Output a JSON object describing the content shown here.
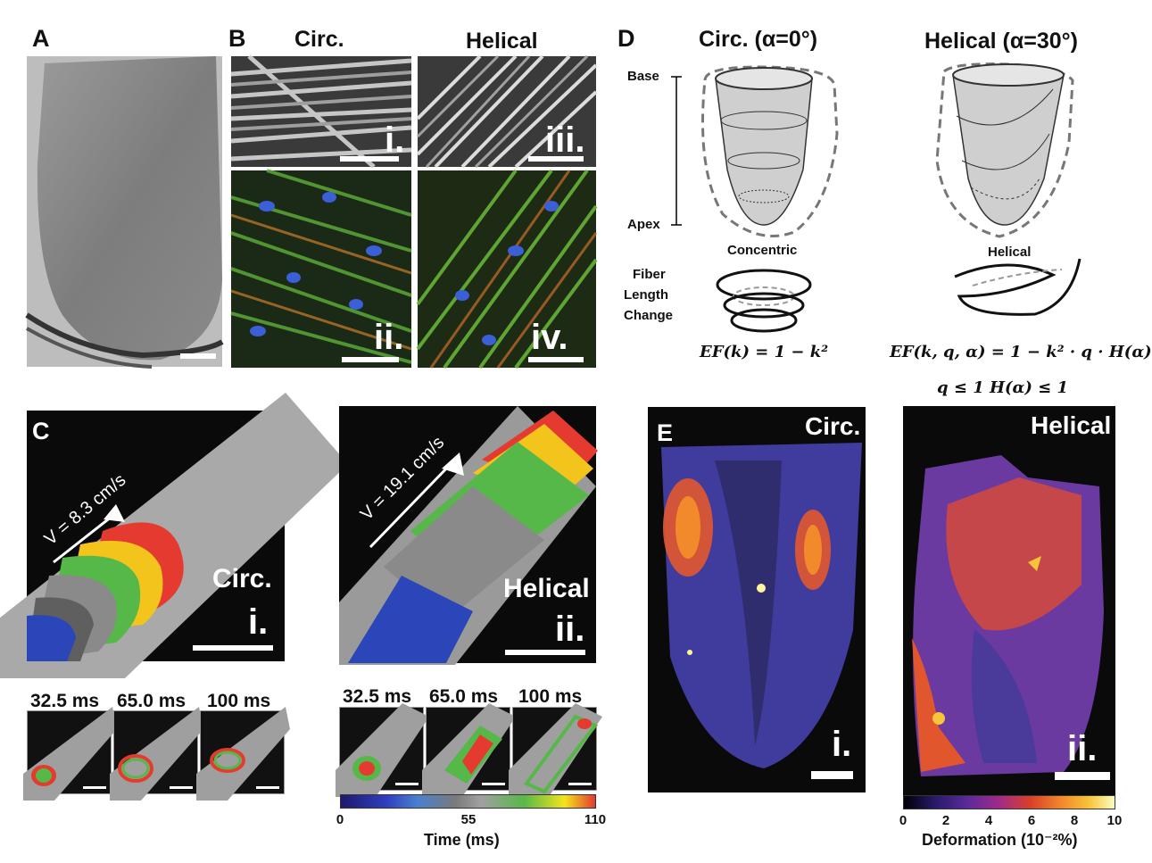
{
  "panel_labels": {
    "a": "A",
    "b": "B",
    "c": "C",
    "d": "D",
    "e": "E"
  },
  "b_headers": {
    "circ": "Circ.",
    "helical": "Helical"
  },
  "b_subpanels": {
    "i": "i.",
    "ii": "ii.",
    "iii": "iii.",
    "iv": "iv."
  },
  "c": {
    "circ_label": "Circ.",
    "helical_label": "Helical",
    "sub_i": "i.",
    "sub_ii": "ii.",
    "velocity_circ": "V = 8.3 cm/s",
    "velocity_helical": "V = 19.1 cm/s",
    "times_circ": [
      "32.5 ms",
      "65.0 ms",
      "100 ms"
    ],
    "times_helical": [
      "32.5 ms",
      "65.0 ms",
      "100 ms"
    ],
    "colorbar": {
      "ticks": [
        "0",
        "55",
        "110"
      ],
      "label": "Time (ms)"
    }
  },
  "d": {
    "title_circ": "Circ. (α=0°)",
    "title_helical": "Helical (α=30°)",
    "base": "Base",
    "apex": "Apex",
    "concentric": "Concentric",
    "helical": "Helical",
    "fiber_length_change": [
      "Fiber",
      "Length",
      "Change"
    ],
    "eq_circ": "EF(k) = 1 − k²",
    "eq_helical": "EF(k, q, α) = 1 − k² · q · H(α)",
    "eq_constraints": "q ≤ 1    H(α) ≤ 1"
  },
  "e": {
    "circ_label": "Circ.",
    "helical_label": "Helical",
    "sub_i": "i.",
    "sub_ii": "ii.",
    "colorbar": {
      "ticks": [
        "0",
        "2",
        "4",
        "6",
        "8",
        "10"
      ],
      "label": "Deformation (10⁻²%)"
    }
  }
}
